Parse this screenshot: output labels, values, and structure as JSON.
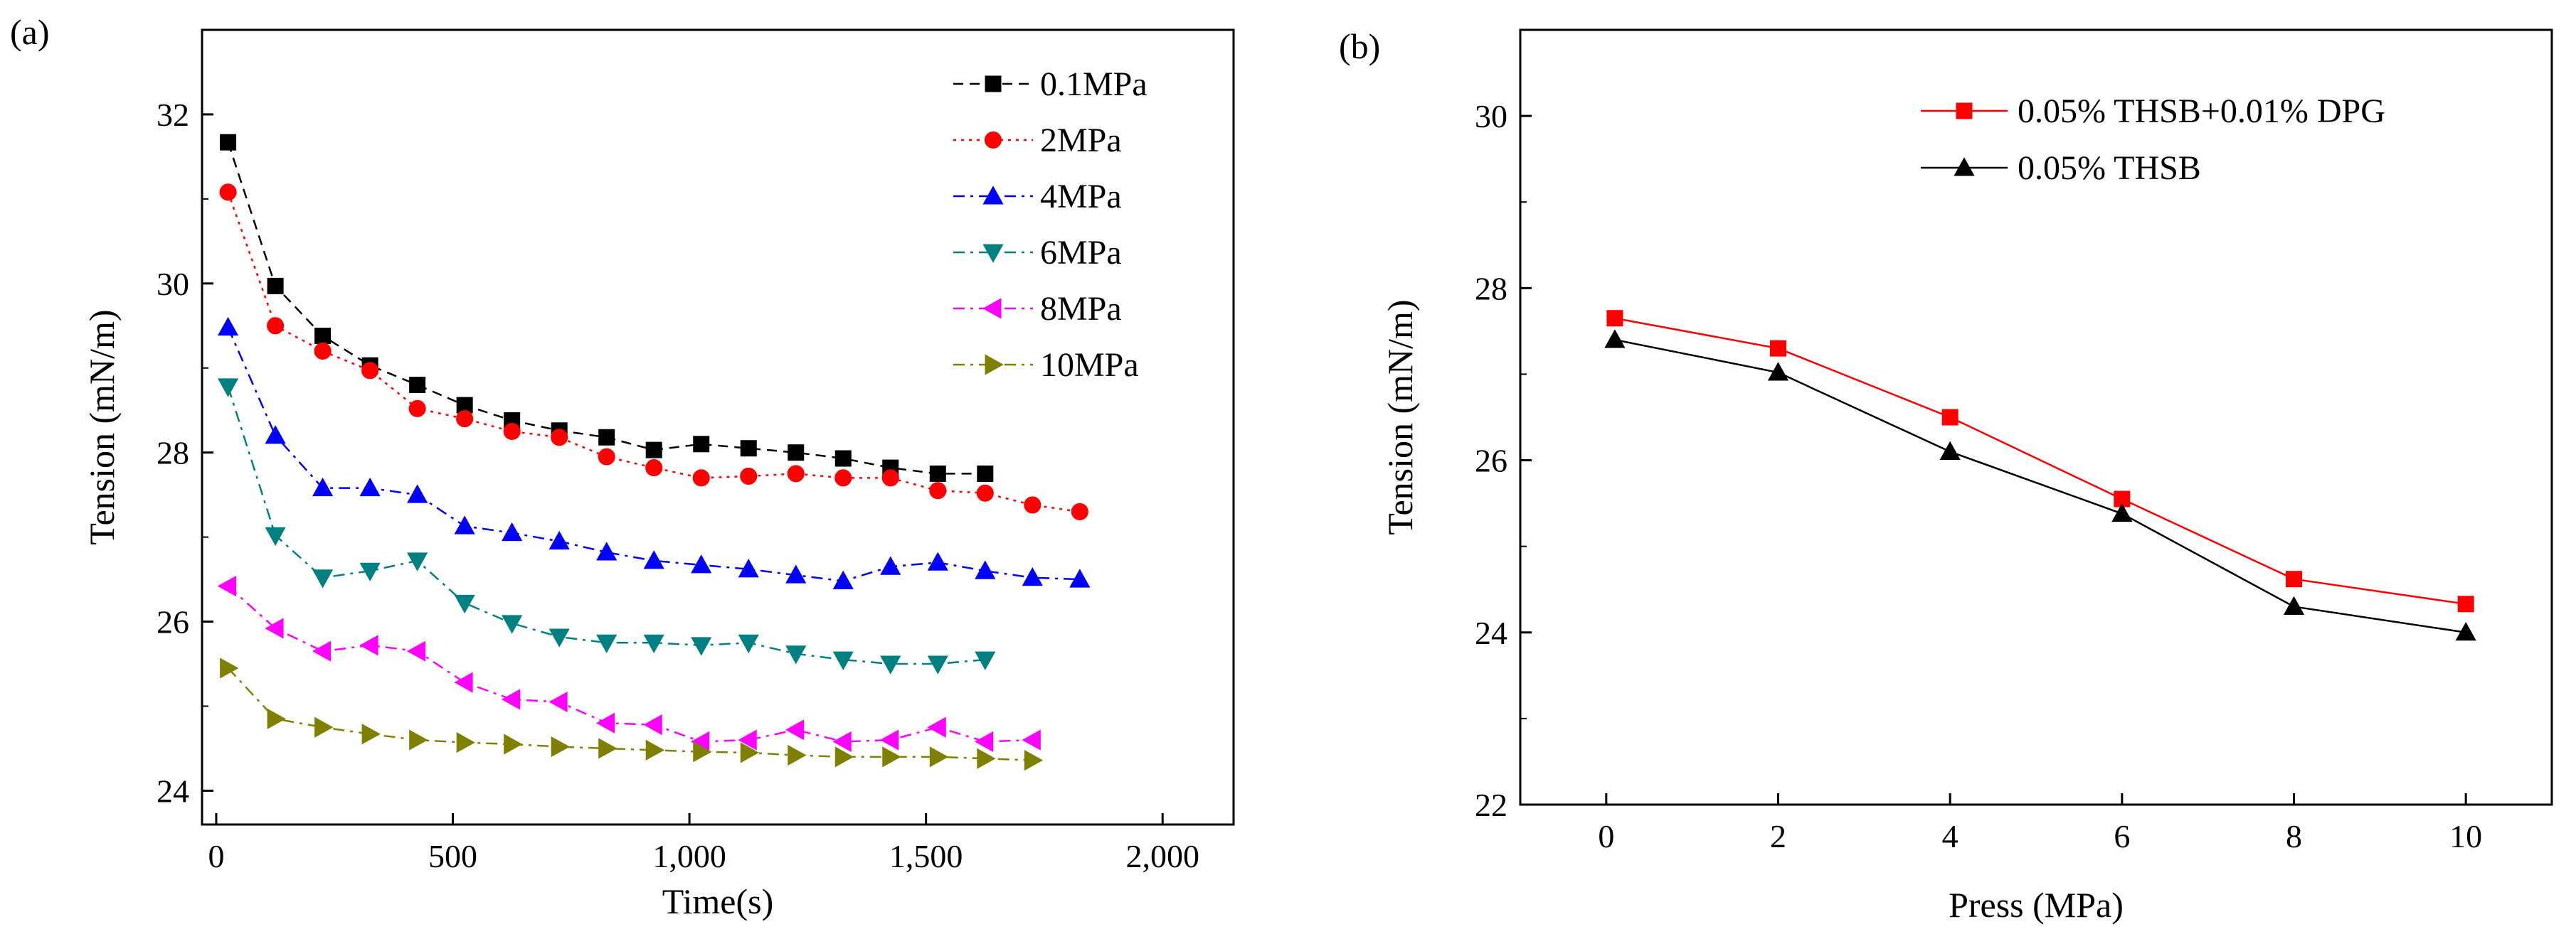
{
  "chart_data": [
    {
      "panel_label": "(a)",
      "type": "line",
      "title": "",
      "xlabel": "Time(s)",
      "ylabel": "Tension (mN/m)",
      "xlim": [
        -30,
        2150
      ],
      "ylim": [
        23.6,
        33
      ],
      "xticks": [
        0,
        500,
        1000,
        1500,
        2000
      ],
      "xtick_labels": [
        "0",
        "500",
        "1,000",
        "1,500",
        "2,000"
      ],
      "yticks": [
        24,
        26,
        28,
        30,
        32
      ],
      "ytick_labels": [
        "24",
        "26",
        "28",
        "30",
        "32"
      ],
      "grid": false,
      "legend_position": "top-right",
      "series": [
        {
          "name": "0.1MPa",
          "color": "#000000",
          "marker": "square",
          "dash": "dash",
          "x": [
            25,
            125,
            225,
            325,
            425,
            525,
            625,
            725,
            825,
            925,
            1025,
            1125,
            1225,
            1325,
            1425,
            1525,
            1625
          ],
          "y": [
            31.67,
            29.97,
            29.38,
            29.03,
            28.8,
            28.56,
            28.38,
            28.26,
            28.18,
            28.03,
            28.1,
            28.05,
            28.0,
            27.93,
            27.82,
            27.75,
            27.75
          ]
        },
        {
          "name": "2MPa",
          "color": "#ff0000",
          "marker": "circle",
          "dash": "dot",
          "x": [
            25,
            125,
            225,
            325,
            425,
            525,
            625,
            725,
            825,
            925,
            1025,
            1125,
            1225,
            1325,
            1425,
            1525,
            1625,
            1725,
            1825
          ],
          "y": [
            31.08,
            29.5,
            29.2,
            28.97,
            28.52,
            28.4,
            28.25,
            28.18,
            27.95,
            27.82,
            27.7,
            27.72,
            27.75,
            27.7,
            27.7,
            27.55,
            27.52,
            27.38,
            27.3
          ]
        },
        {
          "name": "4MPa",
          "color": "#0000ff",
          "marker": "triangle-up",
          "dash": "dashdot",
          "x": [
            25,
            125,
            225,
            325,
            425,
            525,
            625,
            725,
            825,
            925,
            1025,
            1125,
            1225,
            1325,
            1425,
            1525,
            1625,
            1725,
            1825
          ],
          "y": [
            29.48,
            28.2,
            27.58,
            27.58,
            27.5,
            27.13,
            27.05,
            26.95,
            26.82,
            26.72,
            26.67,
            26.62,
            26.55,
            26.48,
            26.65,
            26.7,
            26.6,
            26.52,
            26.5
          ]
        },
        {
          "name": "6MPa",
          "color": "#008080",
          "marker": "triangle-down",
          "dash": "dashdot",
          "x": [
            25,
            125,
            225,
            325,
            425,
            525,
            625,
            725,
            825,
            925,
            1025,
            1125,
            1225,
            1325,
            1425,
            1525,
            1625
          ],
          "y": [
            28.78,
            27.02,
            26.52,
            26.6,
            26.72,
            26.22,
            25.98,
            25.82,
            25.75,
            25.75,
            25.72,
            25.75,
            25.62,
            25.55,
            25.5,
            25.5,
            25.55
          ]
        },
        {
          "name": "8MPa",
          "color": "#ff00ff",
          "marker": "triangle-left",
          "dash": "dashdot",
          "x": [
            25,
            125,
            225,
            325,
            425,
            525,
            625,
            725,
            825,
            925,
            1025,
            1125,
            1225,
            1325,
            1425,
            1525,
            1625,
            1725
          ],
          "y": [
            26.42,
            25.92,
            25.65,
            25.72,
            25.65,
            25.28,
            25.08,
            25.05,
            24.8,
            24.78,
            24.58,
            24.6,
            24.72,
            24.58,
            24.6,
            24.75,
            24.58,
            24.6
          ]
        },
        {
          "name": "10MPa",
          "color": "#808000",
          "marker": "triangle-right",
          "dash": "dashdot",
          "x": [
            25,
            125,
            225,
            325,
            425,
            525,
            625,
            725,
            825,
            925,
            1025,
            1125,
            1225,
            1325,
            1425,
            1525,
            1625,
            1725
          ],
          "y": [
            25.45,
            24.85,
            24.75,
            24.67,
            24.6,
            24.57,
            24.55,
            24.52,
            24.5,
            24.48,
            24.46,
            24.45,
            24.42,
            24.4,
            24.4,
            24.4,
            24.38,
            24.36
          ]
        }
      ]
    },
    {
      "panel_label": "(b)",
      "type": "line",
      "title": "",
      "xlabel": "Press (MPa)",
      "ylabel": "Tension (mN/m)",
      "xlim": [
        -1,
        11
      ],
      "ylim": [
        22,
        31
      ],
      "xticks": [
        0,
        2,
        4,
        6,
        8,
        10
      ],
      "xtick_labels": [
        "0",
        "2",
        "4",
        "6",
        "8",
        "10"
      ],
      "yticks": [
        22,
        24,
        26,
        28,
        30
      ],
      "ytick_labels": [
        "22",
        "24",
        "26",
        "28",
        "30"
      ],
      "grid": false,
      "legend_position": "top-right",
      "series": [
        {
          "name": "0.05% THSB+0.01% DPG",
          "color": "#ff0000",
          "marker": "square",
          "dash": "solid",
          "x": [
            0.1,
            2,
            4,
            6,
            8,
            10
          ],
          "y": [
            27.65,
            27.3,
            26.5,
            25.55,
            24.62,
            24.33
          ]
        },
        {
          "name": "0.05% THSB",
          "color": "#000000",
          "marker": "triangle-up",
          "dash": "solid",
          "x": [
            0.1,
            2,
            4,
            6,
            8,
            10
          ],
          "y": [
            27.4,
            27.02,
            26.1,
            25.38,
            24.3,
            24.0
          ]
        }
      ]
    }
  ]
}
